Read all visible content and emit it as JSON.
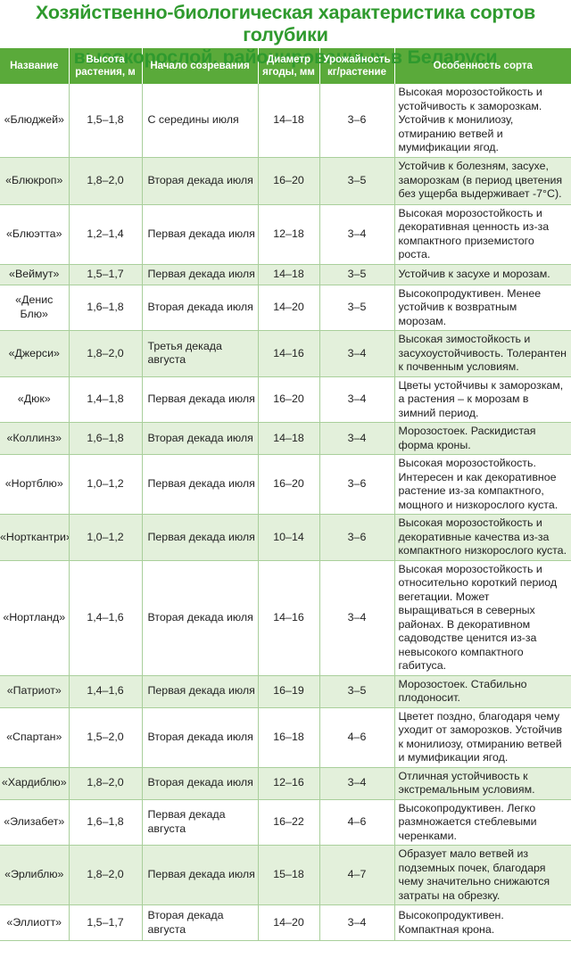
{
  "title": {
    "line1": "Хозяйственно-биологическая характеристика сортов голубики",
    "line2": "высокорослой, районированных в Беларуси"
  },
  "headers": {
    "name": "Название",
    "height_1": "Высота",
    "height_2": "растения, м",
    "ripening": "Начало созревания",
    "diameter_1": "Диаметр",
    "diameter_2": "ягоды, мм",
    "yield_1": "Урожайность",
    "yield_2": "кг/растение",
    "feature": "Особенность сорта"
  },
  "rows": [
    {
      "name": "«Блюджей»",
      "height": "1,5–1,8",
      "ripening": "С середины июля",
      "diameter": "14–18",
      "yield": "3–6",
      "feature": "Высокая морозостойкость и устойчивость к заморозкам. Устойчив к монилиозу, отмиранию ветвей и мумификации ягод."
    },
    {
      "name": "«Блюкроп»",
      "height": "1,8–2,0",
      "ripening": "Вторая декада июля",
      "diameter": "16–20",
      "yield": "3–5",
      "feature": "Устойчив к болезням, засухе, заморозкам (в период цветения без ущерба выдерживает -7°С)."
    },
    {
      "name": "«Блюэтта»",
      "height": "1,2–1,4",
      "ripening": "Первая декада июля",
      "diameter": "12–18",
      "yield": "3–4",
      "feature": "Высокая морозостойкость и декоративная ценность из-за компактного приземистого роста."
    },
    {
      "name": "«Веймут»",
      "height": "1,5–1,7",
      "ripening": "Первая декада июля",
      "diameter": "14–18",
      "yield": "3–5",
      "feature": "Устойчив к засухе и морозам."
    },
    {
      "name": "«Денис Блю»",
      "height": "1,6–1,8",
      "ripening": "Вторая декада июля",
      "diameter": "14–20",
      "yield": "3–5",
      "feature": "Высокопродуктивен. Менее устойчив к возвратным морозам."
    },
    {
      "name": "«Джерси»",
      "height": "1,8–2,0",
      "ripening": "Третья декада августа",
      "diameter": "14–16",
      "yield": "3–4",
      "feature": "Высокая зимостойкость и засухоустойчивость. Толерантен к почвенным условиям."
    },
    {
      "name": "«Дюк»",
      "height": "1,4–1,8",
      "ripening": "Первая декада июля",
      "diameter": "16–20",
      "yield": "3–4",
      "feature": "Цветы устойчивы к заморозкам, а растения – к морозам в зимний период."
    },
    {
      "name": "«Коллинз»",
      "height": "1,6–1,8",
      "ripening": "Вторая декада июля",
      "diameter": "14–18",
      "yield": "3–4",
      "feature": "Морозостоек. Раскидистая форма кроны."
    },
    {
      "name": "«Нортблю»",
      "height": "1,0–1,2",
      "ripening": "Первая декада июля",
      "diameter": "16–20",
      "yield": "3–6",
      "feature": "Высокая морозостойкость. Интересен и как декоративное растение из-за компактного, мощного и низкорослого куста."
    },
    {
      "name": "«Норткантри»",
      "height": "1,0–1,2",
      "ripening": "Первая декада июля",
      "diameter": "10–14",
      "yield": "3–6",
      "feature": "Высокая морозостойкость и декоративные качества из-за компактного низкорослого куста."
    },
    {
      "name": "«Нортланд»",
      "height": "1,4–1,6",
      "ripening": "Вторая декада июля",
      "diameter": "14–16",
      "yield": "3–4",
      "feature": "Высокая морозостойкость и относительно короткий период вегетации. Может выращиваться в северных районах. В декоративном садоводстве ценится из-за невысокого компактного габитуса."
    },
    {
      "name": "«Патриот»",
      "height": "1,4–1,6",
      "ripening": "Первая декада июля",
      "diameter": "16–19",
      "yield": "3–5",
      "feature": "Морозостоек. Стабильно плодоносит."
    },
    {
      "name": "«Спартан»",
      "height": "1,5–2,0",
      "ripening": "Вторая декада июля",
      "diameter": "16–18",
      "yield": "4–6",
      "feature": "Цветет поздно, благодаря чему уходит от заморозков. Устойчив к монилиозу, отмиранию ветвей и мумификации ягод."
    },
    {
      "name": "«Хардиблю»",
      "height": "1,8–2,0",
      "ripening": "Вторая декада июля",
      "diameter": "12–16",
      "yield": "3–4",
      "feature": "Отличная устойчивость к экстремальным условиям."
    },
    {
      "name": "«Элизабет»",
      "height": "1,6–1,8",
      "ripening": "Первая декада августа",
      "diameter": "16–22",
      "yield": "4–6",
      "feature": "Высокопродуктивен. Легко размножается стеблевыми черенками."
    },
    {
      "name": "«Эрлиблю»",
      "height": "1,8–2,0",
      "ripening": "Первая декада июля",
      "diameter": "15–18",
      "yield": "4–7",
      "feature": "Образует мало ветвей из подземных почек, благодаря чему значительно снижаются затраты на обрезку."
    },
    {
      "name": "«Эллиотт»",
      "height": "1,5–1,7",
      "ripening": "Вторая декада августа",
      "diameter": "14–20",
      "yield": "3–4",
      "feature": "Высокопродуктивен. Компактная крона."
    }
  ]
}
